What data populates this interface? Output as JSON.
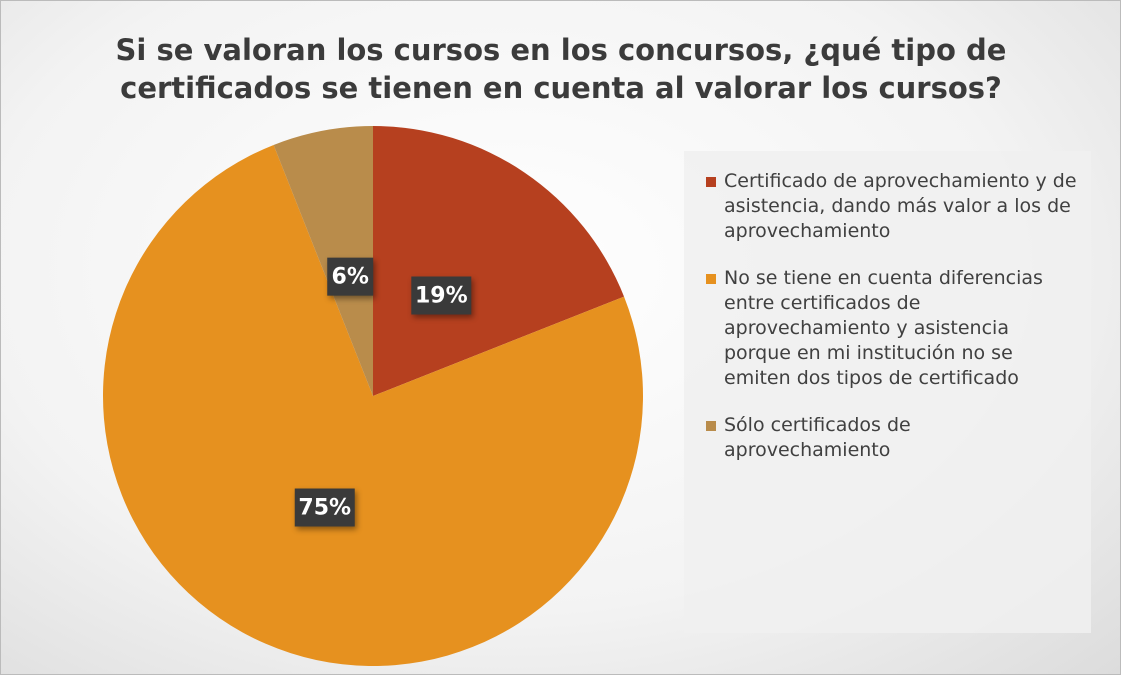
{
  "chart_data": {
    "type": "pie",
    "title": "Si se valoran los cursos en los concursos, ¿qué tipo de certificados se tienen en cuenta al valorar los cursos?",
    "categories": [
      "Certificado de aprovechamiento y de asistencia, dando más valor a los de aprovechamiento",
      "No se tiene en cuenta diferencias entre certificados de aprovechamiento y asistencia porque en mi institución no se emiten dos tipos de certificado",
      "Sólo certificados de aprovechamiento"
    ],
    "values": [
      19,
      75,
      6
    ],
    "value_labels": [
      "19%",
      "75%",
      "6%"
    ],
    "colors": [
      "#b6401f",
      "#e6911f",
      "#b98c4b"
    ],
    "legend": "right"
  }
}
